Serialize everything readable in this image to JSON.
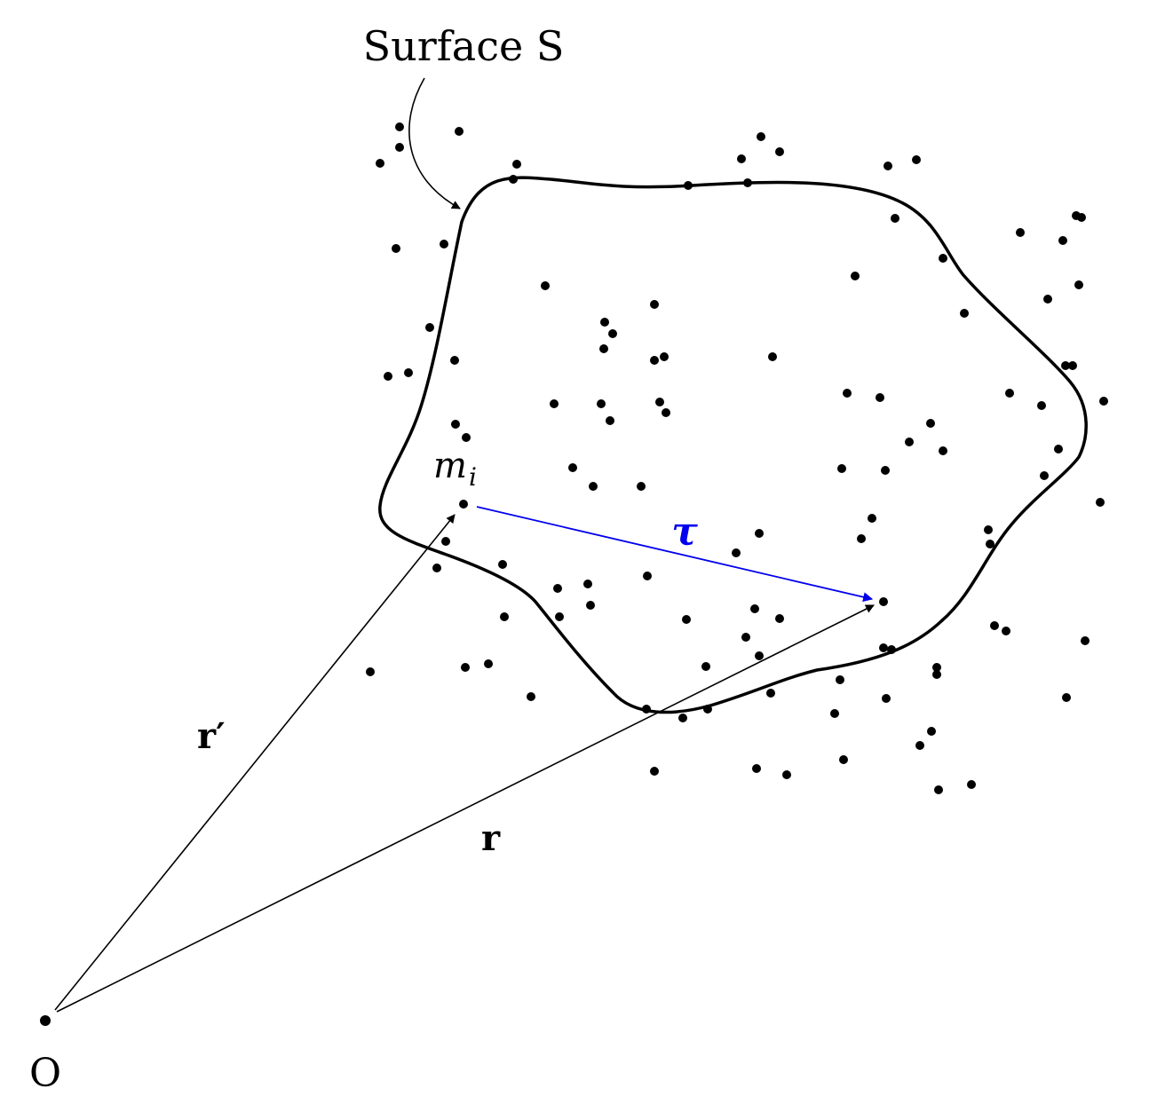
{
  "labels": {
    "surface": "Surface S",
    "mass_name": "m",
    "mass_subscript": "i",
    "tau": "τ",
    "r_prime": "r′",
    "r": "r",
    "origin": "O"
  },
  "colors": {
    "ink": "#000000",
    "tau": "#0000ee",
    "background": "#ffffff"
  }
}
